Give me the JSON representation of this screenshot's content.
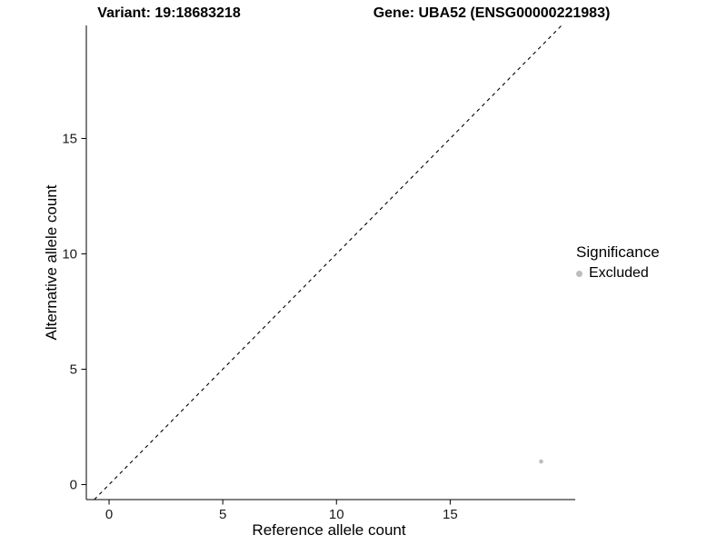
{
  "chart_data": {
    "type": "scatter",
    "titles": {
      "left": "Variant: 19:18683218",
      "right": "Gene: UBA52 (ENSG00000221983)"
    },
    "xlabel": "Reference allele count",
    "ylabel": "Alternative allele count",
    "xlim": [
      -1,
      20.5
    ],
    "ylim": [
      -0.65,
      19.9
    ],
    "xticks": [
      0,
      5,
      10,
      15
    ],
    "yticks": [
      0,
      5,
      10,
      15
    ],
    "grid": false,
    "axis_color": "#000000",
    "tick_label_color": "#1a1a1a",
    "identity_line": {
      "style": "dashed",
      "color": "#000000",
      "equation": "y = x"
    },
    "series": [
      {
        "name": "Excluded",
        "color": "#bdbdbd",
        "points": [
          {
            "x": 19,
            "y": 1
          }
        ]
      }
    ],
    "legend": {
      "title": "Significance",
      "position": "right",
      "entries": [
        {
          "label": "Excluded",
          "color": "#bdbdbd"
        }
      ]
    }
  }
}
